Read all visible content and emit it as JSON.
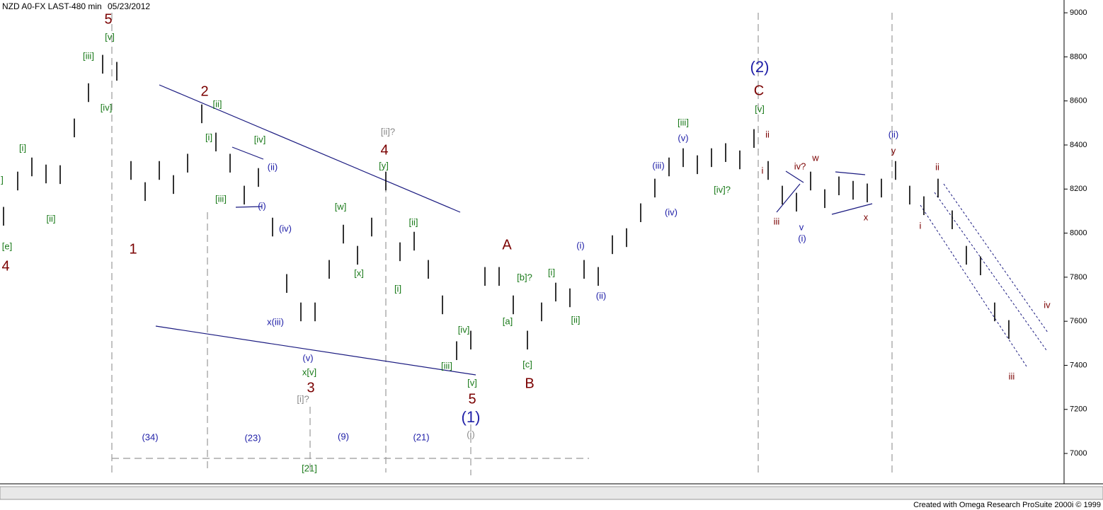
{
  "chart_data": {
    "type": "ohlc",
    "title": "NZD A0-FX LAST-480 min",
    "subtitle": "05/23/2012",
    "footer": "Created with Omega Research ProSuite 2000i © 1999",
    "ylim": [
      6875,
      9042
    ],
    "yticks": [
      7000,
      7200,
      7400,
      7600,
      7800,
      8000,
      8200,
      8400,
      8600,
      8800,
      9000
    ],
    "color": "#000000",
    "high": [
      8119,
      8279,
      8343,
      8311,
      8308,
      8520,
      8680,
      8809,
      8777,
      8327,
      8231,
      8327,
      8263,
      8360,
      8584,
      8456,
      8360,
      8215,
      8295,
      8070,
      7814,
      7685,
      7685,
      7878,
      8038,
      7942,
      8070,
      8279,
      7958,
      8006,
      7878,
      7717,
      7509,
      7557,
      7846,
      7846,
      7717,
      7557,
      7685,
      7775,
      7749,
      7878,
      7846,
      7990,
      8022,
      8135,
      8247,
      8343,
      8385,
      8353,
      8385,
      8408,
      8375,
      8472,
      8327,
      8215,
      8183,
      8279,
      8199,
      8257,
      8237,
      8225,
      8247,
      8327,
      8215,
      8167,
      8247,
      8103,
      7942,
      7894,
      7685,
      7605
    ],
    "low": [
      8034,
      8194,
      8258,
      8226,
      8223,
      8435,
      8595,
      8724,
      8692,
      8242,
      8146,
      8242,
      8178,
      8275,
      8499,
      8371,
      8275,
      8130,
      8210,
      7985,
      7729,
      7600,
      7600,
      7793,
      7953,
      7857,
      7985,
      8194,
      7873,
      7921,
      7793,
      7632,
      7424,
      7472,
      7761,
      7761,
      7632,
      7472,
      7600,
      7690,
      7664,
      7793,
      7761,
      7905,
      7937,
      8050,
      8162,
      8258,
      8300,
      8268,
      8300,
      8323,
      8290,
      8387,
      8242,
      8130,
      8098,
      8194,
      8114,
      8172,
      8152,
      8140,
      8162,
      8242,
      8130,
      8082,
      8162,
      8018,
      7857,
      7809,
      7600,
      7520
    ],
    "annotations": [
      "5",
      "[v]",
      "[iii]",
      "[iv]",
      "[i]",
      "[ii]",
      "]",
      "[e]",
      "4",
      "1",
      "2",
      "[ii]",
      "[i]",
      "[iv]",
      "(ii)",
      "[iii]",
      "(i)",
      "(iv)",
      "x(iii)",
      "(v)",
      "x[v]",
      "3",
      "[i]?",
      "4",
      "[ii]?",
      "[y]",
      "[w]",
      "[x]",
      "[ii]",
      "[i]",
      "[iv]",
      "[iii]",
      "[v]",
      "5",
      "(1)",
      "(i)",
      "A",
      "[b]?",
      "[i]",
      "[a]",
      "[c]",
      "B",
      "[ii]",
      "(i)",
      "(ii)",
      "(iii)",
      "(iv)",
      "(v)",
      "[iii]",
      "[iv]?",
      "(2)",
      "C",
      "[v]",
      "ii",
      "i",
      "iii",
      "iv?",
      "w",
      "v",
      "(i)",
      "x",
      "(ii)",
      "y",
      "ii",
      "i",
      "iv",
      "iii",
      "(34)",
      "(23)",
      "(9)",
      "(21)",
      "[21]"
    ]
  }
}
